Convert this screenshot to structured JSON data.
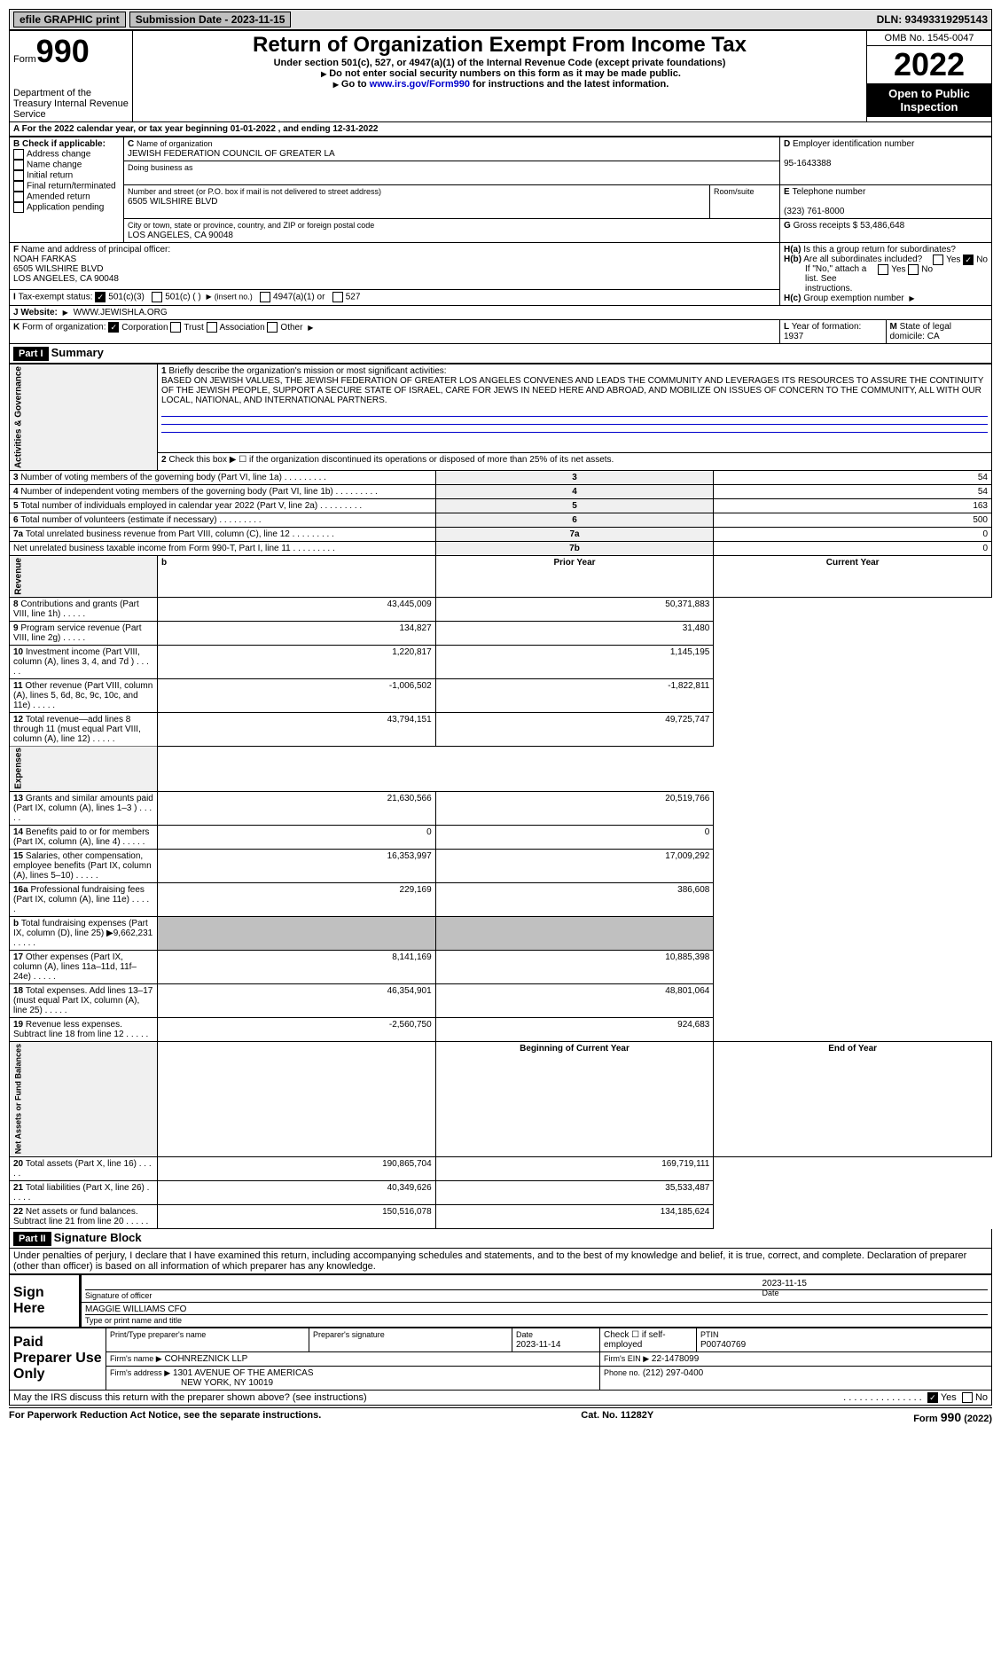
{
  "topbar": {
    "efile": "efile GRAPHIC print",
    "submission_label": "Submission Date - 2023-11-15",
    "dln": "DLN: 93493319295143"
  },
  "header": {
    "form_prefix": "Form",
    "form_no": "990",
    "title": "Return of Organization Exempt From Income Tax",
    "subtitle": "Under section 501(c), 527, or 4947(a)(1) of the Internal Revenue Code (except private foundations)",
    "note1": "Do not enter social security numbers on this form as it may be made public.",
    "note2_prefix": "Go to ",
    "note2_link": "www.irs.gov/Form990",
    "note2_suffix": " for instructions and the latest information.",
    "omb": "OMB No. 1545-0047",
    "year": "2022",
    "open_public": "Open to Public Inspection",
    "dept": "Department of the Treasury Internal Revenue Service"
  },
  "A": {
    "text": "For the 2022 calendar year, or tax year beginning 01-01-2022   , and ending 12-31-2022"
  },
  "B": {
    "label": "Check if applicable:",
    "items": [
      "Address change",
      "Name change",
      "Initial return",
      "Final return/terminated",
      "Amended return",
      "Application pending"
    ]
  },
  "C": {
    "name_label": "Name of organization",
    "name": "JEWISH FEDERATION COUNCIL OF GREATER LA",
    "dba_label": "Doing business as",
    "dba": "",
    "street_label": "Number and street (or P.O. box if mail is not delivered to street address)",
    "street": "6505 WILSHIRE BLVD",
    "room_label": "Room/suite",
    "room": "",
    "city_label": "City or town, state or province, country, and ZIP or foreign postal code",
    "city": "LOS ANGELES, CA  90048"
  },
  "D": {
    "label": "Employer identification number",
    "value": "95-1643388"
  },
  "E": {
    "label": "Telephone number",
    "value": "(323) 761-8000"
  },
  "G": {
    "label": "Gross receipts $",
    "value": "53,486,648"
  },
  "F": {
    "label": "Name and address of principal officer:",
    "name": "NOAH FARKAS",
    "street": "6505 WILSHIRE BLVD",
    "city": "LOS ANGELES, CA  90048"
  },
  "H": {
    "a": "Is this a group return for subordinates?",
    "a_yes": "Yes",
    "a_no": "No",
    "b": "Are all subordinates included?",
    "b_yes": "Yes",
    "b_no": "No",
    "b_note": "If \"No,\" attach a list. See instructions.",
    "c": "Group exemption number"
  },
  "I": {
    "label": "Tax-exempt status:",
    "opt1": "501(c)(3)",
    "opt2": "501(c) (  )",
    "opt2_note": "(insert no.)",
    "opt3": "4947(a)(1) or",
    "opt4": "527"
  },
  "J": {
    "label": "Website:",
    "value": "WWW.JEWISHLA.ORG"
  },
  "K": {
    "label": "Form of organization:",
    "opts": [
      "Corporation",
      "Trust",
      "Association",
      "Other"
    ]
  },
  "L": {
    "label": "Year of formation:",
    "value": "1937"
  },
  "M": {
    "label": "State of legal domicile:",
    "value": "CA"
  },
  "part1": {
    "label": "Part I",
    "title": "Summary"
  },
  "summary": {
    "q1_label": "Briefly describe the organization's mission or most significant activities:",
    "q1": "BASED ON JEWISH VALUES, THE JEWISH FEDERATION OF GREATER LOS ANGELES CONVENES AND LEADS THE COMMUNITY AND LEVERAGES ITS RESOURCES TO ASSURE THE CONTINUITY OF THE JEWISH PEOPLE, SUPPORT A SECURE STATE OF ISRAEL, CARE FOR JEWS IN NEED HERE AND ABROAD, AND MOBILIZE ON ISSUES OF CONCERN TO THE COMMUNITY, ALL WITH OUR LOCAL, NATIONAL, AND INTERNATIONAL PARTNERS.",
    "q2": "Check this box ▶ ☐  if the organization discontinued its operations or disposed of more than 25% of its net assets.",
    "rows_ag": [
      {
        "n": "3",
        "t": "Number of voting members of the governing body (Part VI, line 1a)",
        "rn": "3",
        "v": "54"
      },
      {
        "n": "4",
        "t": "Number of independent voting members of the governing body (Part VI, line 1b)",
        "rn": "4",
        "v": "54"
      },
      {
        "n": "5",
        "t": "Total number of individuals employed in calendar year 2022 (Part V, line 2a)",
        "rn": "5",
        "v": "163"
      },
      {
        "n": "6",
        "t": "Total number of volunteers (estimate if necessary)",
        "rn": "6",
        "v": "500"
      },
      {
        "n": "7a",
        "t": "Total unrelated business revenue from Part VIII, column (C), line 12",
        "rn": "7a",
        "v": "0"
      },
      {
        "n": "",
        "t": "Net unrelated business taxable income from Form 990-T, Part I, line 11",
        "rn": "7b",
        "v": "0"
      }
    ],
    "col_prior": "Prior Year",
    "col_current": "Current Year",
    "rows_rev": [
      {
        "n": "8",
        "t": "Contributions and grants (Part VIII, line 1h)",
        "p": "43,445,009",
        "c": "50,371,883"
      },
      {
        "n": "9",
        "t": "Program service revenue (Part VIII, line 2g)",
        "p": "134,827",
        "c": "31,480"
      },
      {
        "n": "10",
        "t": "Investment income (Part VIII, column (A), lines 3, 4, and 7d )",
        "p": "1,220,817",
        "c": "1,145,195"
      },
      {
        "n": "11",
        "t": "Other revenue (Part VIII, column (A), lines 5, 6d, 8c, 9c, 10c, and 11e)",
        "p": "-1,006,502",
        "c": "-1,822,811"
      },
      {
        "n": "12",
        "t": "Total revenue—add lines 8 through 11 (must equal Part VIII, column (A), line 12)",
        "p": "43,794,151",
        "c": "49,725,747"
      }
    ],
    "rows_exp": [
      {
        "n": "13",
        "t": "Grants and similar amounts paid (Part IX, column (A), lines 1–3 )",
        "p": "21,630,566",
        "c": "20,519,766"
      },
      {
        "n": "14",
        "t": "Benefits paid to or for members (Part IX, column (A), line 4)",
        "p": "0",
        "c": "0"
      },
      {
        "n": "15",
        "t": "Salaries, other compensation, employee benefits (Part IX, column (A), lines 5–10)",
        "p": "16,353,997",
        "c": "17,009,292"
      },
      {
        "n": "16a",
        "t": "Professional fundraising fees (Part IX, column (A), line 11e)",
        "p": "229,169",
        "c": "386,608"
      },
      {
        "n": "b",
        "t": "Total fundraising expenses (Part IX, column (D), line 25) ▶9,662,231",
        "p": "",
        "c": "",
        "gray": true
      },
      {
        "n": "17",
        "t": "Other expenses (Part IX, column (A), lines 11a–11d, 11f–24e)",
        "p": "8,141,169",
        "c": "10,885,398"
      },
      {
        "n": "18",
        "t": "Total expenses. Add lines 13–17 (must equal Part IX, column (A), line 25)",
        "p": "46,354,901",
        "c": "48,801,064"
      },
      {
        "n": "19",
        "t": "Revenue less expenses. Subtract line 18 from line 12",
        "p": "-2,560,750",
        "c": "924,683"
      }
    ],
    "col_begin": "Beginning of Current Year",
    "col_end": "End of Year",
    "rows_na": [
      {
        "n": "20",
        "t": "Total assets (Part X, line 16)",
        "p": "190,865,704",
        "c": "169,719,111"
      },
      {
        "n": "21",
        "t": "Total liabilities (Part X, line 26)",
        "p": "40,349,626",
        "c": "35,533,487"
      },
      {
        "n": "22",
        "t": "Net assets or fund balances. Subtract line 21 from line 20",
        "p": "150,516,078",
        "c": "134,185,624"
      }
    ],
    "side_ag": "Activities & Governance",
    "side_rev": "Revenue",
    "side_exp": "Expenses",
    "side_na": "Net Assets or Fund Balances"
  },
  "part2": {
    "label": "Part II",
    "title": "Signature Block",
    "declaration": "Under penalties of perjury, I declare that I have examined this return, including accompanying schedules and statements, and to the best of my knowledge and belief, it is true, correct, and complete. Declaration of preparer (other than officer) is based on all information of which preparer has any knowledge."
  },
  "sign": {
    "here": "Sign Here",
    "sig_officer": "Signature of officer",
    "date": "Date",
    "date_val": "2023-11-15",
    "name": "MAGGIE WILLIAMS  CFO",
    "name_label": "Type or print name and title"
  },
  "preparer": {
    "label": "Paid Preparer Use Only",
    "print_name": "Print/Type preparer's name",
    "sig": "Preparer's signature",
    "date_label": "Date",
    "date": "2023-11-14",
    "check": "Check ☐ if self-employed",
    "ptin_label": "PTIN",
    "ptin": "P00740769",
    "firm_name_label": "Firm's name ▶",
    "firm_name": "COHNREZNICK LLP",
    "firm_ein_label": "Firm's EIN ▶",
    "firm_ein": "22-1478099",
    "firm_addr_label": "Firm's address ▶",
    "firm_addr1": "1301 AVENUE OF THE AMERICAS",
    "firm_addr2": "NEW YORK, NY  10019",
    "phone_label": "Phone no.",
    "phone": "(212) 297-0400"
  },
  "may_irs": {
    "text": "May the IRS discuss this return with the preparer shown above? (see instructions)",
    "yes": "Yes",
    "no": "No"
  },
  "footer": {
    "left": "For Paperwork Reduction Act Notice, see the separate instructions.",
    "mid": "Cat. No. 11282Y",
    "right_form": "Form",
    "right_no": "990",
    "right_year": "(2022)"
  }
}
